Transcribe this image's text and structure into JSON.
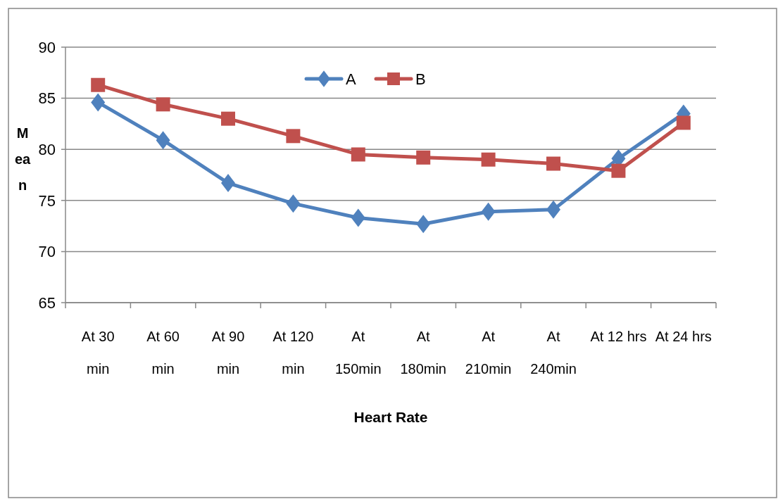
{
  "chart_data": {
    "type": "line",
    "xlabel": "Heart Rate",
    "ylabel": "Mean",
    "categories": [
      "At 30 min",
      "At 60 min",
      "At 90 min",
      "At 120 min",
      "At 150min",
      "At 180min",
      "At 210min",
      "At 240min",
      "At 12 hrs",
      "At 24 hrs"
    ],
    "series": [
      {
        "name": "A",
        "color": "#4f81bd",
        "marker": "diamond",
        "values": [
          84.6,
          80.9,
          76.7,
          74.7,
          73.3,
          72.7,
          73.9,
          74.1,
          79.1,
          83.5
        ]
      },
      {
        "name": "B",
        "color": "#c0504d",
        "marker": "square",
        "values": [
          86.3,
          84.4,
          83.0,
          81.3,
          79.5,
          79.2,
          79.0,
          78.6,
          77.9,
          82.6
        ]
      }
    ],
    "ylim": [
      65,
      90
    ],
    "yticks": [
      65,
      70,
      75,
      80,
      85,
      90
    ],
    "grid": "y",
    "legend": "top",
    "line_style": "solid"
  }
}
